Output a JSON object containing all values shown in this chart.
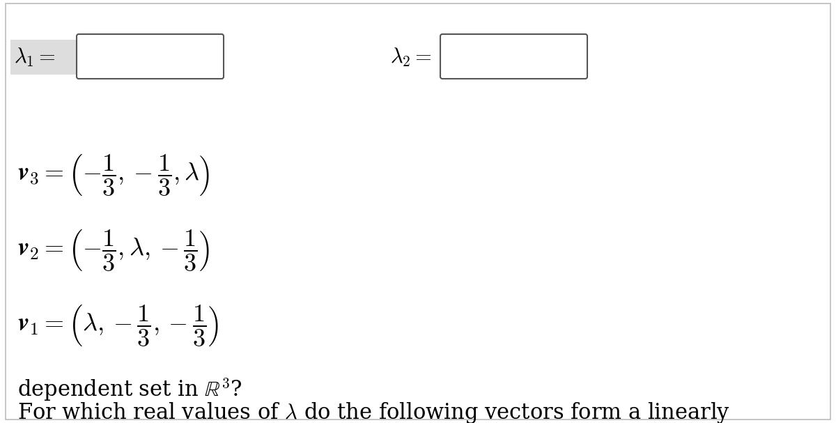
{
  "background_color": "#ffffff",
  "border_color": "#bbbbbb",
  "text_color": "#000000",
  "title_line1": "For which real values of $\\lambda$ do the following vectors form a linearly",
  "title_line2": "dependent set in $\\mathbb{R}^3$?",
  "v1_full": "$\\boldsymbol{v}_1 = \\left(\\lambda, -\\dfrac{1}{3}, -\\dfrac{1}{3}\\right)$",
  "v2_full": "$\\boldsymbol{v}_2 = \\left(-\\dfrac{1}{3}, \\lambda, -\\dfrac{1}{3}\\right)$",
  "v3_full": "$\\boldsymbol{v}_3 = \\left(-\\dfrac{1}{3}, -\\dfrac{1}{3}, \\lambda\\right)$",
  "lambda1_label": "$\\lambda_1 =$",
  "lambda2_label": "$\\lambda_2 =$",
  "input_box_color": "#ffffff",
  "input_box_border": "#555555",
  "lambda_bg": "#dddddd",
  "fig_width": 12.0,
  "fig_height": 6.07,
  "title_fontsize": 22,
  "expr_fontsize": 26,
  "lambda_fontsize": 22
}
